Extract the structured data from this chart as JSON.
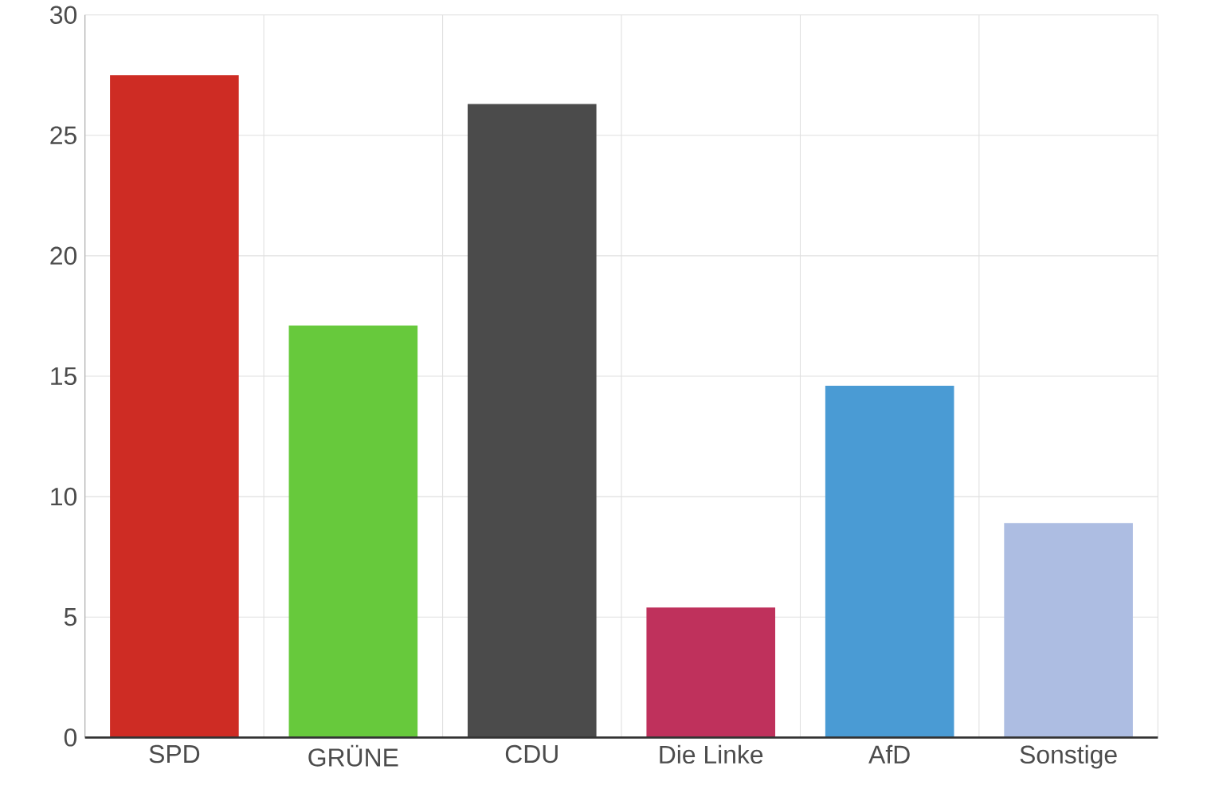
{
  "chart_data": {
    "type": "bar",
    "categories": [
      "SPD",
      "GRÜNE",
      "CDU",
      "Die Linke",
      "AfD",
      "Sonstige"
    ],
    "values": [
      27.5,
      17.1,
      26.3,
      5.4,
      14.6,
      8.9
    ],
    "colors": [
      "#ce2c24",
      "#67c93c",
      "#4b4b4b",
      "#bf315c",
      "#4a9bd4",
      "#adbde2"
    ],
    "ylim": [
      0,
      30
    ],
    "yticks": [
      0,
      5,
      10,
      15,
      20,
      25,
      30
    ],
    "grid": true
  }
}
